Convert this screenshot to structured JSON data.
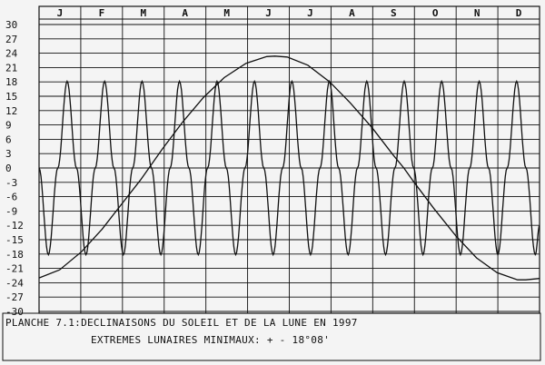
{
  "chart_data": {
    "type": "line",
    "title": "PLANCHE 7.1:DECLINAISONS DU SOLEIL ET DE LA LUNE EN 1997",
    "subtitle": "EXTREMES LUNAIRES MINIMAUX: + - 18°08'",
    "months": [
      "J",
      "F",
      "M",
      "A",
      "M",
      "J",
      "J",
      "A",
      "S",
      "O",
      "N",
      "D"
    ],
    "y_ticks": [
      "30",
      "27",
      "24",
      "21",
      "18",
      "15",
      "12",
      "9",
      "6",
      "3",
      "0",
      "-3",
      "-6",
      "-9",
      "-12",
      "-15",
      "-18",
      "-21",
      "-24",
      "-27",
      "-30"
    ],
    "xlim": [
      0,
      365
    ],
    "ylim": [
      -30,
      30
    ],
    "grid": true,
    "series": [
      {
        "x": [
          0,
          15,
          31,
          46,
          59,
          74,
          90,
          105,
          120,
          135,
          151,
          166,
          172,
          181,
          196,
          212,
          227,
          243,
          258,
          266,
          273,
          288,
          304,
          319,
          334,
          349,
          355,
          365
        ],
        "y": [
          -23.0,
          -21.3,
          -17.5,
          -12.8,
          -8.0,
          -2.5,
          4.0,
          9.7,
          14.8,
          18.9,
          21.9,
          23.3,
          23.4,
          23.2,
          21.5,
          18.0,
          13.6,
          8.4,
          2.8,
          0.0,
          -2.8,
          -8.5,
          -14.2,
          -18.8,
          -21.9,
          -23.4,
          -23.4,
          -23.1
        ]
      },
      {
        "period_days": 27.32,
        "amplitude": 18.13,
        "x": [
          0,
          6.8,
          13.7,
          20.5,
          27.3,
          34.2,
          41.0,
          47.8,
          54.6,
          61.5,
          68.3,
          75.1,
          82.0,
          88.8,
          95.6,
          102.4,
          109.3,
          116.1,
          122.9,
          129.8,
          136.6,
          143.4,
          150.2,
          157.1,
          163.9,
          170.7,
          177.6,
          184.4,
          191.2,
          198.0,
          204.9,
          211.7,
          218.5,
          225.4,
          232.2,
          239.0,
          245.8,
          252.7,
          259.5,
          266.3,
          273.2,
          280.0,
          286.8,
          293.6,
          300.5,
          307.3,
          314.1,
          321.0,
          327.8,
          334.6,
          341.4,
          348.3,
          355.1,
          361.9,
          365
        ],
        "y": [
          0.0,
          -18.13,
          0.0,
          18.13,
          0.0,
          -18.13,
          0.0,
          18.13,
          0.0,
          -18.13,
          0.0,
          18.13,
          0.0,
          -18.13,
          0.0,
          18.13,
          0.0,
          -18.13,
          0.0,
          18.13,
          0.0,
          -18.13,
          0.0,
          18.13,
          0.0,
          -18.13,
          0.0,
          18.13,
          0.0,
          -18.13,
          0.0,
          18.13,
          0.0,
          -18.13,
          0.0,
          18.13,
          0.0,
          -18.13,
          0.0,
          18.13,
          0.0,
          -18.13,
          0.0,
          18.13,
          0.0,
          -18.13,
          0.0,
          18.13,
          0.0,
          -18.13,
          0.0,
          18.13,
          0.0,
          -18.13,
          -12.0
        ]
      }
    ]
  }
}
